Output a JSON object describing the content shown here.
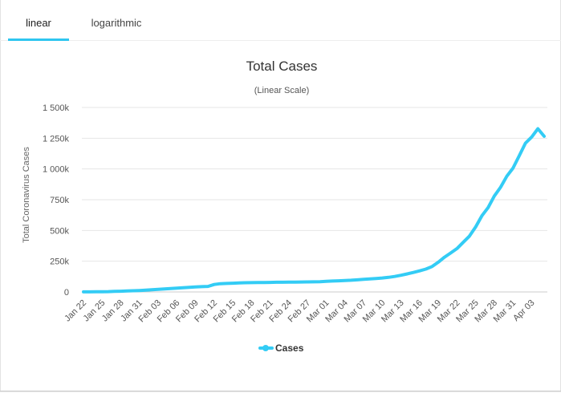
{
  "tabs": [
    {
      "label": "linear",
      "active": true
    },
    {
      "label": "logarithmic",
      "active": false
    }
  ],
  "colors": {
    "series": "#33ccf5",
    "tab_underline": "#2fc6f0"
  },
  "chart_data": {
    "type": "line",
    "title": "Total Cases",
    "subtitle": "(Linear Scale)",
    "ylabel": "Total Coronavirus Cases",
    "xlabel": "",
    "ylim": [
      0,
      1500000
    ],
    "y_ticks": [
      0,
      250000,
      500000,
      750000,
      1000000,
      1250000,
      1500000
    ],
    "y_tick_labels": [
      "0",
      "250k",
      "500k",
      "750k",
      "1 000k",
      "1 250k",
      "1 500k"
    ],
    "x_tick_labels": [
      "Jan 22",
      "Jan 25",
      "Jan 28",
      "Jan 31",
      "Feb 03",
      "Feb 06",
      "Feb 09",
      "Feb 12",
      "Feb 15",
      "Feb 18",
      "Feb 21",
      "Feb 24",
      "Feb 27",
      "Mar 01",
      "Mar 04",
      "Mar 07",
      "Mar 10",
      "Mar 13",
      "Mar 16",
      "Mar 19",
      "Mar 22",
      "Mar 25",
      "Mar 28",
      "Mar 31",
      "Apr 03"
    ],
    "grid": true,
    "legend_position": "bottom-center",
    "series": [
      {
        "name": "Cases",
        "x": [
          "Jan 22",
          "Jan 23",
          "Jan 24",
          "Jan 25",
          "Jan 26",
          "Jan 27",
          "Jan 28",
          "Jan 29",
          "Jan 30",
          "Jan 31",
          "Feb 01",
          "Feb 02",
          "Feb 03",
          "Feb 04",
          "Feb 05",
          "Feb 06",
          "Feb 07",
          "Feb 08",
          "Feb 09",
          "Feb 10",
          "Feb 11",
          "Feb 12",
          "Feb 13",
          "Feb 14",
          "Feb 15",
          "Feb 16",
          "Feb 17",
          "Feb 18",
          "Feb 19",
          "Feb 20",
          "Feb 21",
          "Feb 22",
          "Feb 23",
          "Feb 24",
          "Feb 25",
          "Feb 26",
          "Feb 27",
          "Feb 28",
          "Feb 29",
          "Mar 01",
          "Mar 02",
          "Mar 03",
          "Mar 04",
          "Mar 05",
          "Mar 06",
          "Mar 07",
          "Mar 08",
          "Mar 09",
          "Mar 10",
          "Mar 11",
          "Mar 12",
          "Mar 13",
          "Mar 14",
          "Mar 15",
          "Mar 16",
          "Mar 17",
          "Mar 18",
          "Mar 19",
          "Mar 20",
          "Mar 21",
          "Mar 22",
          "Mar 23",
          "Mar 24",
          "Mar 25",
          "Mar 26",
          "Mar 27",
          "Mar 28",
          "Mar 29",
          "Mar 30",
          "Mar 31",
          "Apr 01",
          "Apr 02",
          "Apr 03",
          "Apr 04",
          "Apr 05"
        ],
        "values": [
          580,
          845,
          1320,
          2015,
          2800,
          4580,
          6060,
          7810,
          9820,
          11950,
          14550,
          17390,
          20630,
          24550,
          28280,
          31500,
          34880,
          37560,
          40550,
          43100,
          45200,
          60400,
          66900,
          69000,
          71200,
          73200,
          75100,
          75600,
          76200,
          76800,
          77800,
          78600,
          79000,
          79400,
          80100,
          80800,
          81400,
          82400,
          83800,
          86100,
          88400,
          90400,
          93100,
          95100,
          98400,
          102200,
          106100,
          109800,
          113600,
          118600,
          125900,
          135400,
          147000,
          158400,
          171800,
          186000,
          207000,
          242000,
          283000,
          317000,
          353000,
          404000,
          454000,
          529000,
          619000,
          686000,
          780000,
          851000,
          941000,
          1007000,
          1108000,
          1210000,
          1260000,
          1327000,
          1266000
        ],
        "color": "#33ccf5"
      }
    ]
  }
}
